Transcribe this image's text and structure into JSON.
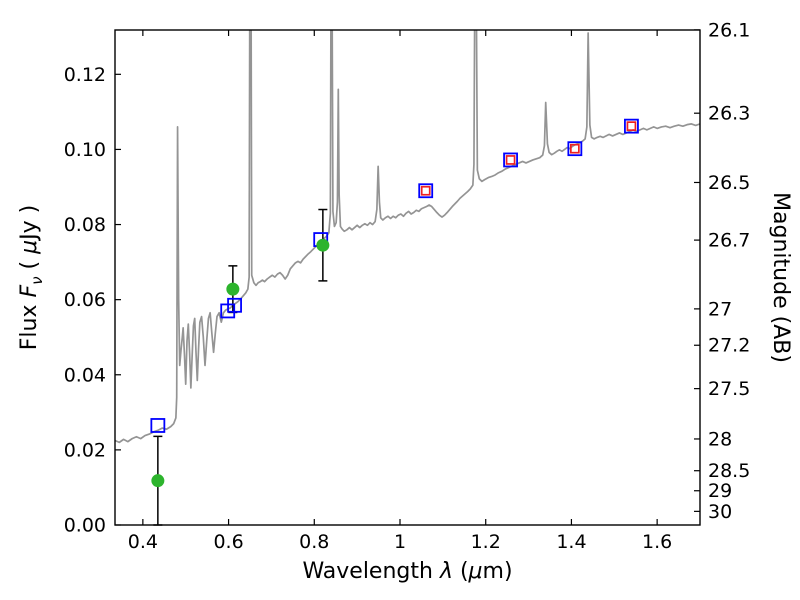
{
  "figure": {
    "background": "#ffffff"
  },
  "chart_data": {
    "type": "line",
    "title": "",
    "xlabel_segments": [
      {
        "t": "Wavelength  ",
        "i": false
      },
      {
        "t": "λ",
        "i": true
      },
      {
        "t": " (",
        "i": false
      },
      {
        "t": "μ",
        "i": true
      },
      {
        "t": "m)",
        "i": false
      }
    ],
    "ylabel_segments": [
      {
        "t": "Flux  ",
        "i": false
      },
      {
        "t": "F",
        "i": true
      },
      {
        "t": "ν",
        "i": true,
        "sub": true
      },
      {
        "t": "  ( ",
        "i": false
      },
      {
        "t": "μ",
        "i": true
      },
      {
        "t": "Jy )",
        "i": false
      }
    ],
    "y2label": "Magnitude (AB)",
    "xlim": [
      0.335,
      1.7
    ],
    "ylim": [
      0.0,
      0.1318
    ],
    "grid": false,
    "legend": "none",
    "xticks": {
      "values": [
        0.4,
        0.6,
        0.8,
        1.0,
        1.2,
        1.4,
        1.6
      ],
      "labels": [
        "0.4",
        "0.6",
        "0.8",
        "1",
        "1.2",
        "1.4",
        "1.6"
      ]
    },
    "yticks": {
      "values": [
        0.0,
        0.02,
        0.04,
        0.06,
        0.08,
        0.1,
        0.12
      ],
      "labels": [
        "0.00",
        "0.02",
        "0.04",
        "0.06",
        "0.08",
        "0.10",
        "0.12"
      ]
    },
    "y2ticks": {
      "ab_zeropoint": 23.9,
      "mag_values": [
        26.1,
        26.3,
        26.5,
        26.7,
        27.0,
        27.2,
        27.5,
        28.0,
        28.5,
        29.0,
        30.0
      ],
      "labels": [
        "26.1",
        "26.3",
        "26.5",
        "26.7",
        "27",
        "27.2",
        "27.5",
        "28",
        "28.5",
        "29",
        "30"
      ]
    },
    "colors": {
      "spectrum": "#949494",
      "model_square": "#0000ff",
      "refit_square": "#ee2020",
      "observed_circle": "#2db42d",
      "errorbar": "#000000",
      "axes": "#000000"
    },
    "series": {
      "spectrum": {
        "name": "best-fit model spectrum",
        "linewidth": 1.7,
        "points": [
          [
            0.335,
            0.0225
          ],
          [
            0.345,
            0.022
          ],
          [
            0.355,
            0.0228
          ],
          [
            0.365,
            0.0222
          ],
          [
            0.375,
            0.023
          ],
          [
            0.385,
            0.0235
          ],
          [
            0.395,
            0.023
          ],
          [
            0.405,
            0.0238
          ],
          [
            0.415,
            0.0242
          ],
          [
            0.425,
            0.0248
          ],
          [
            0.435,
            0.0252
          ],
          [
            0.445,
            0.0258
          ],
          [
            0.455,
            0.0255
          ],
          [
            0.465,
            0.0262
          ],
          [
            0.472,
            0.027
          ],
          [
            0.477,
            0.0285
          ],
          [
            0.479,
            0.034
          ],
          [
            0.481,
            0.106
          ],
          [
            0.4835,
            0.06
          ],
          [
            0.486,
            0.0425
          ],
          [
            0.489,
            0.0465
          ],
          [
            0.492,
            0.05
          ],
          [
            0.494,
            0.0525
          ],
          [
            0.497,
            0.0455
          ],
          [
            0.5,
            0.0375
          ],
          [
            0.503,
            0.049
          ],
          [
            0.506,
            0.0535
          ],
          [
            0.509,
            0.046
          ],
          [
            0.512,
            0.0365
          ],
          [
            0.515,
            0.045
          ],
          [
            0.518,
            0.053
          ],
          [
            0.521,
            0.055
          ],
          [
            0.524,
            0.046
          ],
          [
            0.527,
            0.0385
          ],
          [
            0.53,
            0.047
          ],
          [
            0.533,
            0.054
          ],
          [
            0.537,
            0.0555
          ],
          [
            0.541,
            0.05
          ],
          [
            0.545,
            0.0425
          ],
          [
            0.549,
            0.049
          ],
          [
            0.553,
            0.055
          ],
          [
            0.557,
            0.0565
          ],
          [
            0.561,
            0.051
          ],
          [
            0.565,
            0.046
          ],
          [
            0.569,
            0.051
          ],
          [
            0.573,
            0.0555
          ],
          [
            0.578,
            0.0565
          ],
          [
            0.583,
            0.054
          ],
          [
            0.588,
            0.0565
          ],
          [
            0.593,
            0.0572
          ],
          [
            0.598,
            0.0575
          ],
          [
            0.604,
            0.0578
          ],
          [
            0.61,
            0.0585
          ],
          [
            0.616,
            0.059
          ],
          [
            0.622,
            0.0595
          ],
          [
            0.628,
            0.0602
          ],
          [
            0.634,
            0.061
          ],
          [
            0.64,
            0.0618
          ],
          [
            0.645,
            0.0628
          ],
          [
            0.648,
            0.066
          ],
          [
            0.6495,
            0.142
          ],
          [
            0.6525,
            0.142
          ],
          [
            0.654,
            0.0665
          ],
          [
            0.659,
            0.0645
          ],
          [
            0.664,
            0.0638
          ],
          [
            0.669,
            0.0645
          ],
          [
            0.674,
            0.0648
          ],
          [
            0.679,
            0.0652
          ],
          [
            0.684,
            0.0648
          ],
          [
            0.69,
            0.0655
          ],
          [
            0.696,
            0.066
          ],
          [
            0.702,
            0.0665
          ],
          [
            0.708,
            0.066
          ],
          [
            0.714,
            0.0668
          ],
          [
            0.72,
            0.0672
          ],
          [
            0.726,
            0.0665
          ],
          [
            0.732,
            0.0655
          ],
          [
            0.738,
            0.0665
          ],
          [
            0.744,
            0.0682
          ],
          [
            0.75,
            0.069
          ],
          [
            0.756,
            0.0698
          ],
          [
            0.762,
            0.0702
          ],
          [
            0.768,
            0.0698
          ],
          [
            0.774,
            0.0708
          ],
          [
            0.78,
            0.0715
          ],
          [
            0.786,
            0.0722
          ],
          [
            0.792,
            0.0728
          ],
          [
            0.798,
            0.0735
          ],
          [
            0.804,
            0.0742
          ],
          [
            0.81,
            0.0748
          ],
          [
            0.816,
            0.0755
          ],
          [
            0.822,
            0.0762
          ],
          [
            0.828,
            0.0768
          ],
          [
            0.834,
            0.0778
          ],
          [
            0.8375,
            0.083
          ],
          [
            0.839,
            0.142
          ],
          [
            0.8415,
            0.142
          ],
          [
            0.8435,
            0.0835
          ],
          [
            0.847,
            0.0795
          ],
          [
            0.851,
            0.0805
          ],
          [
            0.854,
            0.086
          ],
          [
            0.856,
            0.116
          ],
          [
            0.858,
            0.088
          ],
          [
            0.861,
            0.0795
          ],
          [
            0.865,
            0.0788
          ],
          [
            0.87,
            0.0782
          ],
          [
            0.876,
            0.0786
          ],
          [
            0.882,
            0.0792
          ],
          [
            0.888,
            0.0786
          ],
          [
            0.894,
            0.0792
          ],
          [
            0.9,
            0.0798
          ],
          [
            0.906,
            0.0792
          ],
          [
            0.912,
            0.0798
          ],
          [
            0.918,
            0.0802
          ],
          [
            0.924,
            0.0798
          ],
          [
            0.93,
            0.0805
          ],
          [
            0.936,
            0.08
          ],
          [
            0.942,
            0.0808
          ],
          [
            0.946,
            0.084
          ],
          [
            0.949,
            0.0955
          ],
          [
            0.952,
            0.086
          ],
          [
            0.955,
            0.0818
          ],
          [
            0.96,
            0.0812
          ],
          [
            0.966,
            0.0818
          ],
          [
            0.972,
            0.0822
          ],
          [
            0.978,
            0.0816
          ],
          [
            0.984,
            0.0822
          ],
          [
            0.99,
            0.0818
          ],
          [
            0.996,
            0.0825
          ],
          [
            1.002,
            0.0828
          ],
          [
            1.008,
            0.0822
          ],
          [
            1.014,
            0.083
          ],
          [
            1.02,
            0.0835
          ],
          [
            1.026,
            0.0828
          ],
          [
            1.032,
            0.0832
          ],
          [
            1.038,
            0.0838
          ],
          [
            1.044,
            0.0835
          ],
          [
            1.05,
            0.0842
          ],
          [
            1.056,
            0.0845
          ],
          [
            1.062,
            0.0848
          ],
          [
            1.068,
            0.0852
          ],
          [
            1.074,
            0.0848
          ],
          [
            1.08,
            0.084
          ],
          [
            1.086,
            0.0832
          ],
          [
            1.092,
            0.0825
          ],
          [
            1.098,
            0.082
          ],
          [
            1.104,
            0.0825
          ],
          [
            1.11,
            0.0832
          ],
          [
            1.116,
            0.084
          ],
          [
            1.122,
            0.0848
          ],
          [
            1.128,
            0.0855
          ],
          [
            1.134,
            0.0862
          ],
          [
            1.14,
            0.087
          ],
          [
            1.146,
            0.0876
          ],
          [
            1.152,
            0.0882
          ],
          [
            1.158,
            0.0888
          ],
          [
            1.164,
            0.0895
          ],
          [
            1.17,
            0.0905
          ],
          [
            1.1725,
            0.096
          ],
          [
            1.1745,
            0.142
          ],
          [
            1.178,
            0.142
          ],
          [
            1.1805,
            0.0945
          ],
          [
            1.185,
            0.0922
          ],
          [
            1.191,
            0.0915
          ],
          [
            1.198,
            0.092
          ],
          [
            1.206,
            0.0925
          ],
          [
            1.214,
            0.0928
          ],
          [
            1.222,
            0.0932
          ],
          [
            1.23,
            0.0938
          ],
          [
            1.238,
            0.0942
          ],
          [
            1.246,
            0.0948
          ],
          [
            1.254,
            0.0952
          ],
          [
            1.262,
            0.0956
          ],
          [
            1.27,
            0.096
          ],
          [
            1.278,
            0.0964
          ],
          [
            1.286,
            0.0968
          ],
          [
            1.294,
            0.0964
          ],
          [
            1.302,
            0.0968
          ],
          [
            1.31,
            0.0972
          ],
          [
            1.318,
            0.0975
          ],
          [
            1.326,
            0.0978
          ],
          [
            1.333,
            0.0985
          ],
          [
            1.337,
            0.101
          ],
          [
            1.34,
            0.1125
          ],
          [
            1.344,
            0.1015
          ],
          [
            1.348,
            0.0992
          ],
          [
            1.354,
            0.0986
          ],
          [
            1.36,
            0.099
          ],
          [
            1.366,
            0.0995
          ],
          [
            1.372,
            0.0999
          ],
          [
            1.378,
            0.0995
          ],
          [
            1.384,
            0.1
          ],
          [
            1.39,
            0.1005
          ],
          [
            1.396,
            0.1002
          ],
          [
            1.402,
            0.1008
          ],
          [
            1.408,
            0.1012
          ],
          [
            1.414,
            0.1015
          ],
          [
            1.42,
            0.1018
          ],
          [
            1.426,
            0.1022
          ],
          [
            1.432,
            0.1028
          ],
          [
            1.436,
            0.106
          ],
          [
            1.439,
            0.131
          ],
          [
            1.443,
            0.1065
          ],
          [
            1.447,
            0.1032
          ],
          [
            1.453,
            0.1028
          ],
          [
            1.46,
            0.1032
          ],
          [
            1.467,
            0.1035
          ],
          [
            1.474,
            0.1032
          ],
          [
            1.481,
            0.1036
          ],
          [
            1.488,
            0.104
          ],
          [
            1.496,
            0.1036
          ],
          [
            1.504,
            0.104
          ],
          [
            1.512,
            0.1044
          ],
          [
            1.52,
            0.104
          ],
          [
            1.528,
            0.1044
          ],
          [
            1.536,
            0.1048
          ],
          [
            1.544,
            0.1052
          ],
          [
            1.552,
            0.1048
          ],
          [
            1.56,
            0.1052
          ],
          [
            1.568,
            0.1056
          ],
          [
            1.576,
            0.1052
          ],
          [
            1.584,
            0.1056
          ],
          [
            1.592,
            0.106
          ],
          [
            1.6,
            0.1056
          ],
          [
            1.61,
            0.106
          ],
          [
            1.62,
            0.1062
          ],
          [
            1.63,
            0.1058
          ],
          [
            1.64,
            0.1062
          ],
          [
            1.65,
            0.1065
          ],
          [
            1.66,
            0.1062
          ],
          [
            1.67,
            0.1066
          ],
          [
            1.68,
            0.1068
          ],
          [
            1.69,
            0.1064
          ],
          [
            1.7,
            0.1068
          ]
        ]
      },
      "model_photometry": {
        "name": "model photometry (open blue squares)",
        "marker": "open-square",
        "size": 13,
        "points": [
          [
            0.435,
            0.0265
          ],
          [
            0.598,
            0.057
          ],
          [
            0.614,
            0.0585
          ],
          [
            0.815,
            0.076
          ],
          [
            1.06,
            0.089
          ],
          [
            1.258,
            0.0972
          ],
          [
            1.408,
            0.1002
          ],
          [
            1.54,
            0.1062
          ]
        ]
      },
      "refit_photometry": {
        "name": "photometry (open red squares)",
        "marker": "open-square",
        "size": 8,
        "points": [
          [
            1.06,
            0.089
          ],
          [
            1.258,
            0.0972
          ],
          [
            1.408,
            0.1002
          ],
          [
            1.54,
            0.1062
          ]
        ]
      },
      "observed_photometry": {
        "name": "observed photometry (green circles with error bars)",
        "marker": "circle",
        "size": 12,
        "points": [
          [
            0.435,
            0.0118,
            0.0118
          ],
          [
            0.61,
            0.0628,
            0.0062
          ],
          [
            0.82,
            0.0745,
            0.0095
          ]
        ]
      }
    }
  }
}
